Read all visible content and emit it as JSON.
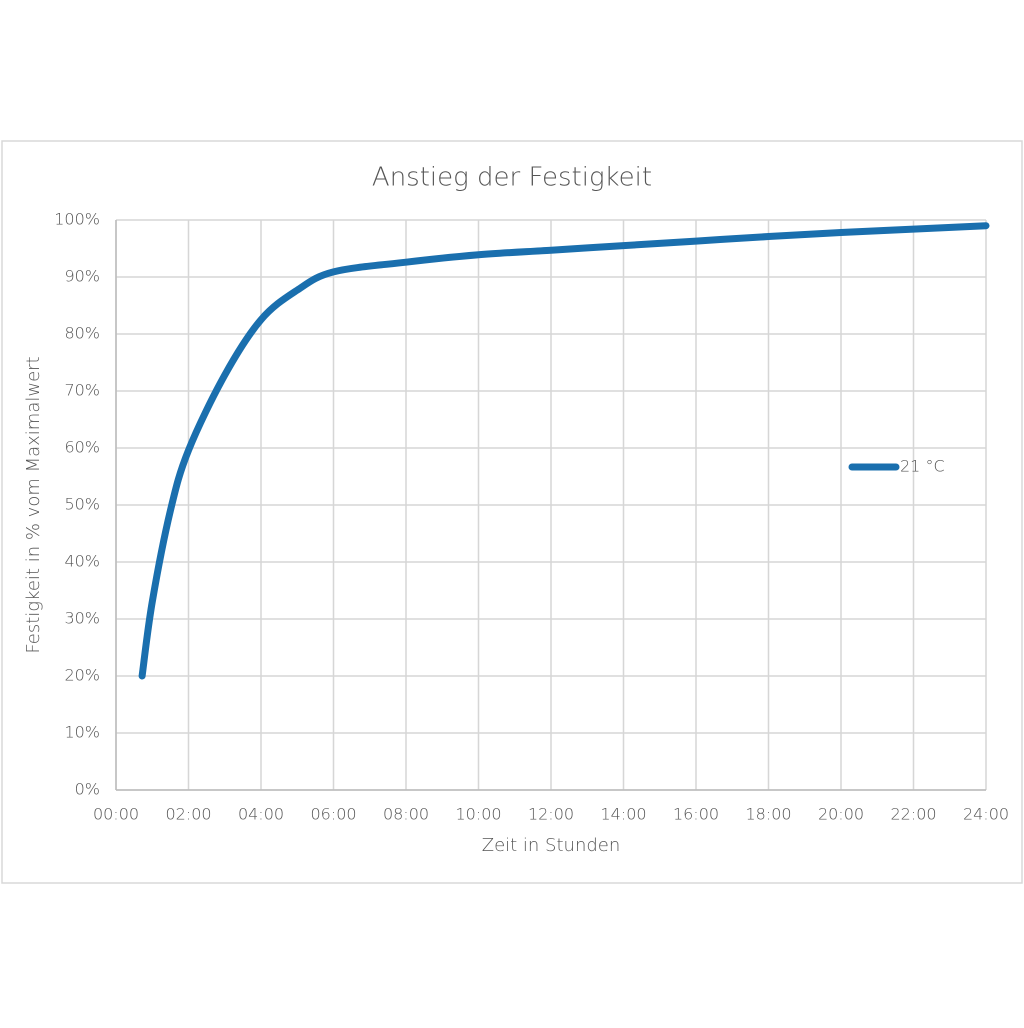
{
  "chart_data": {
    "type": "line",
    "title": "Anstieg der Festigkeit",
    "x_label": "Zeit in Stunden",
    "y_label": "Festigkeit in % vom Maximalwert",
    "xlim": [
      0,
      24
    ],
    "xticks": [
      {
        "value": 0,
        "label": "00:00"
      },
      {
        "value": 2,
        "label": "02:00"
      },
      {
        "value": 4,
        "label": "04:00"
      },
      {
        "value": 6,
        "label": "06:00"
      },
      {
        "value": 8,
        "label": "08:00"
      },
      {
        "value": 10,
        "label": "10:00"
      },
      {
        "value": 12,
        "label": "12:00"
      },
      {
        "value": 14,
        "label": "14:00"
      },
      {
        "value": 16,
        "label": "16:00"
      },
      {
        "value": 18,
        "label": "18:00"
      },
      {
        "value": 20,
        "label": "20:00"
      },
      {
        "value": 22,
        "label": "22:00"
      },
      {
        "value": 24,
        "label": "24:00"
      }
    ],
    "ylim": [
      0,
      100
    ],
    "yticks": [
      {
        "value": 0,
        "label": "0%"
      },
      {
        "value": 10,
        "label": "10%"
      },
      {
        "value": 20,
        "label": "20%"
      },
      {
        "value": 30,
        "label": "30%"
      },
      {
        "value": 40,
        "label": "40%"
      },
      {
        "value": 50,
        "label": "50%"
      },
      {
        "value": 60,
        "label": "60%"
      },
      {
        "value": 70,
        "label": "70%"
      },
      {
        "value": 80,
        "label": "80%"
      },
      {
        "value": 90,
        "label": "90%"
      },
      {
        "value": 100,
        "label": "100%"
      }
    ],
    "grid": true,
    "legend_position": "right",
    "x": [
      0.72,
      1,
      1.5,
      2,
      3,
      4,
      5,
      6,
      8,
      10,
      12,
      14,
      16,
      18,
      20,
      22,
      24
    ],
    "series": [
      {
        "name": "21 °C",
        "color": "#1a6fae",
        "values": [
          20,
          33,
          49,
          59.6,
          72.8,
          82.5,
          87.7,
          90.9,
          92.6,
          93.9,
          94.7,
          95.5,
          96.3,
          97.1,
          97.8,
          98.4,
          99
        ]
      }
    ]
  }
}
